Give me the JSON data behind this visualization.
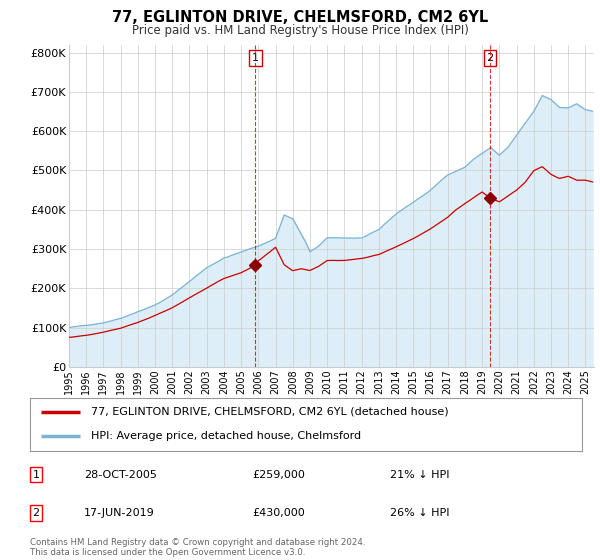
{
  "title_line1": "77, EGLINTON DRIVE, CHELMSFORD, CM2 6YL",
  "title_line2": "Price paid vs. HM Land Registry's House Price Index (HPI)",
  "hpi_label": "HPI: Average price, detached house, Chelmsford",
  "property_label": "77, EGLINTON DRIVE, CHELMSFORD, CM2 6YL (detached house)",
  "footer": "Contains HM Land Registry data © Crown copyright and database right 2024.\nThis data is licensed under the Open Government Licence v3.0.",
  "sale1_date": "28-OCT-2005",
  "sale1_price": "£259,000",
  "sale1_note": "21% ↓ HPI",
  "sale1_year": 2005.83,
  "sale1_value": 259000,
  "sale2_date": "17-JUN-2019",
  "sale2_price": "£430,000",
  "sale2_note": "26% ↓ HPI",
  "sale2_year": 2019.46,
  "sale2_value": 430000,
  "hpi_color": "#7ab3d4",
  "hpi_fill_color": "#ddeef8",
  "property_color": "#cc0000",
  "marker_color": "#8b0000",
  "vline_color": "#cc0000",
  "ylim": [
    0,
    820000
  ],
  "xlim_start": 1995.0,
  "xlim_end": 2025.5,
  "yticks": [
    0,
    100000,
    200000,
    300000,
    400000,
    500000,
    600000,
    700000,
    800000
  ],
  "ytick_labels": [
    "£0",
    "£100K",
    "£200K",
    "£300K",
    "£400K",
    "£500K",
    "£600K",
    "£700K",
    "£800K"
  ],
  "bg_color": "#ffffff",
  "grid_color": "#cccccc",
  "seed": 42
}
